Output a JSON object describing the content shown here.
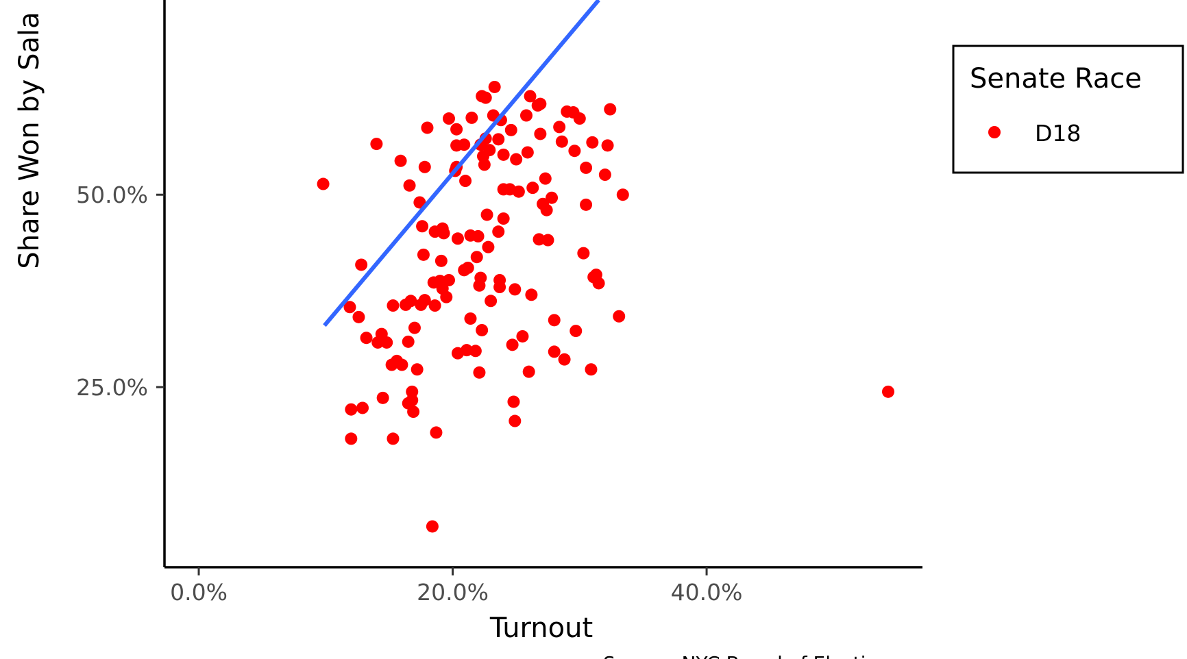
{
  "chart_data": {
    "type": "scatter",
    "xlabel": "Turnout",
    "ylabel": "Share Won by Sala",
    "caption": "Source: NYC Board of Electi",
    "x_ticks": [
      "0.0%",
      "20.0%",
      "40.0%"
    ],
    "x_tick_values": [
      0,
      20,
      40
    ],
    "y_ticks": [
      "25.0%",
      "50.0%"
    ],
    "y_tick_values": [
      25,
      50
    ],
    "xlim": [
      -2.7,
      57
    ],
    "ylim": [
      1.6,
      75.3
    ],
    "legend": {
      "title": "Senate Race",
      "placement": "right",
      "entries": [
        {
          "label": "D18",
          "color": "#ff0000"
        }
      ]
    },
    "colors": {
      "points": "#ff0000",
      "trend": "#3366ff",
      "axis": "#000000"
    },
    "series": [
      {
        "name": "D18",
        "points": [
          [
            9.8,
            51.4
          ],
          [
            11.9,
            35.4
          ],
          [
            12.0,
            22.1
          ],
          [
            12.0,
            18.3
          ],
          [
            12.6,
            34.1
          ],
          [
            12.8,
            40.9
          ],
          [
            12.9,
            22.3
          ],
          [
            13.2,
            31.4
          ],
          [
            14.0,
            56.6
          ],
          [
            14.1,
            30.8
          ],
          [
            14.4,
            31.9
          ],
          [
            14.5,
            23.6
          ],
          [
            14.8,
            30.8
          ],
          [
            15.2,
            27.9
          ],
          [
            15.3,
            35.6
          ],
          [
            15.3,
            18.3
          ],
          [
            15.6,
            28.4
          ],
          [
            15.9,
            54.4
          ],
          [
            16.0,
            27.9
          ],
          [
            16.3,
            35.7
          ],
          [
            16.5,
            30.9
          ],
          [
            16.5,
            22.9
          ],
          [
            16.6,
            51.2
          ],
          [
            16.7,
            36.2
          ],
          [
            16.8,
            24.4
          ],
          [
            16.8,
            23.3
          ],
          [
            16.9,
            21.8
          ],
          [
            17.0,
            32.7
          ],
          [
            17.2,
            27.3
          ],
          [
            17.4,
            49.0
          ],
          [
            17.5,
            35.7
          ],
          [
            17.6,
            45.9
          ],
          [
            17.7,
            42.2
          ],
          [
            17.8,
            53.6
          ],
          [
            17.8,
            36.3
          ],
          [
            18.0,
            58.7
          ],
          [
            18.4,
            6.9
          ],
          [
            18.5,
            38.6
          ],
          [
            18.6,
            45.2
          ],
          [
            18.6,
            35.6
          ],
          [
            18.7,
            19.1
          ],
          [
            19.0,
            38.8
          ],
          [
            19.1,
            41.4
          ],
          [
            19.2,
            37.8
          ],
          [
            19.2,
            45.6
          ],
          [
            19.3,
            45.0
          ],
          [
            19.5,
            36.7
          ],
          [
            19.7,
            38.9
          ],
          [
            19.7,
            59.9
          ],
          [
            20.2,
            53.1
          ],
          [
            20.3,
            53.6
          ],
          [
            20.3,
            58.5
          ],
          [
            20.3,
            56.4
          ],
          [
            20.4,
            29.4
          ],
          [
            20.4,
            44.3
          ],
          [
            20.9,
            56.5
          ],
          [
            20.9,
            40.2
          ],
          [
            21.0,
            51.8
          ],
          [
            21.1,
            29.8
          ],
          [
            21.2,
            40.5
          ],
          [
            21.4,
            44.7
          ],
          [
            21.4,
            33.9
          ],
          [
            21.5,
            60.0
          ],
          [
            21.8,
            29.7
          ],
          [
            21.9,
            41.9
          ],
          [
            22.0,
            44.6
          ],
          [
            22.1,
            26.9
          ],
          [
            22.1,
            38.2
          ],
          [
            22.2,
            39.2
          ],
          [
            22.2,
            56.5
          ],
          [
            22.3,
            32.4
          ],
          [
            22.3,
            62.8
          ],
          [
            22.4,
            55.0
          ],
          [
            22.5,
            53.9
          ],
          [
            22.6,
            57.3
          ],
          [
            22.6,
            62.6
          ],
          [
            22.7,
            47.4
          ],
          [
            22.8,
            43.2
          ],
          [
            22.9,
            55.8
          ],
          [
            23.0,
            36.2
          ],
          [
            23.2,
            60.3
          ],
          [
            23.3,
            64.0
          ],
          [
            23.6,
            45.2
          ],
          [
            23.6,
            57.2
          ],
          [
            23.7,
            38.9
          ],
          [
            23.7,
            38.0
          ],
          [
            23.8,
            59.7
          ],
          [
            24.0,
            46.9
          ],
          [
            24.0,
            55.2
          ],
          [
            24.0,
            50.7
          ],
          [
            24.5,
            50.7
          ],
          [
            24.6,
            58.4
          ],
          [
            24.7,
            30.5
          ],
          [
            24.8,
            23.1
          ],
          [
            24.9,
            20.6
          ],
          [
            24.9,
            37.7
          ],
          [
            25.0,
            54.6
          ],
          [
            25.2,
            50.4
          ],
          [
            25.5,
            31.6
          ],
          [
            25.8,
            60.3
          ],
          [
            25.9,
            55.5
          ],
          [
            26.0,
            27.0
          ],
          [
            26.1,
            62.8
          ],
          [
            26.2,
            37.0
          ],
          [
            26.3,
            50.9
          ],
          [
            26.7,
            61.6
          ],
          [
            26.8,
            44.2
          ],
          [
            26.9,
            61.8
          ],
          [
            26.9,
            57.9
          ],
          [
            27.1,
            48.8
          ],
          [
            27.3,
            52.1
          ],
          [
            27.4,
            48.0
          ],
          [
            27.5,
            44.1
          ],
          [
            27.8,
            49.6
          ],
          [
            28.0,
            33.7
          ],
          [
            28.0,
            29.6
          ],
          [
            28.4,
            58.8
          ],
          [
            28.6,
            56.9
          ],
          [
            28.8,
            28.6
          ],
          [
            29.0,
            60.8
          ],
          [
            29.5,
            60.7
          ],
          [
            29.6,
            55.7
          ],
          [
            29.7,
            32.3
          ],
          [
            30.0,
            59.9
          ],
          [
            30.3,
            42.4
          ],
          [
            30.5,
            53.5
          ],
          [
            30.5,
            48.7
          ],
          [
            30.9,
            27.3
          ],
          [
            31.0,
            56.8
          ],
          [
            31.1,
            39.3
          ],
          [
            31.3,
            39.6
          ],
          [
            31.5,
            38.5
          ],
          [
            32.0,
            52.6
          ],
          [
            32.2,
            56.4
          ],
          [
            32.4,
            61.1
          ],
          [
            33.1,
            34.2
          ],
          [
            33.4,
            50.0
          ],
          [
            54.3,
            24.4
          ]
        ]
      }
    ],
    "trend_line": {
      "x": [
        9.9,
        31.5
      ],
      "y": [
        33.0,
        75.3
      ]
    }
  }
}
